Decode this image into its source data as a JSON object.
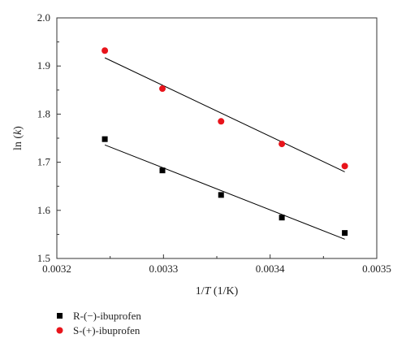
{
  "chart_data": {
    "type": "scatter",
    "xlabel_pre": "1/",
    "xlabel_italic": "T",
    "xlabel_post": " (1/K)",
    "ylabel_pre": "ln (",
    "ylabel_italic": "k",
    "ylabel_post": ")",
    "xlim": [
      0.0032,
      0.0035
    ],
    "ylim": [
      1.5,
      2.0
    ],
    "xticks": [
      0.0032,
      0.0033,
      0.0034,
      0.0035
    ],
    "xtick_labels": [
      "0.0032",
      "0.0033",
      "0.0034",
      "0.0035"
    ],
    "yticks": [
      1.5,
      1.6,
      1.7,
      1.8,
      1.9,
      2.0
    ],
    "ytick_labels": [
      "1.5",
      "1.6",
      "1.7",
      "1.8",
      "1.9",
      "2.0"
    ],
    "grid": false,
    "legend_position": "bottom-left",
    "series": [
      {
        "name": "R-(−)-ibuprofen",
        "marker": "square",
        "color": "#000000",
        "x": [
          0.003245,
          0.003299,
          0.003354,
          0.003411,
          0.00347
        ],
        "y": [
          1.748,
          1.683,
          1.632,
          1.585,
          1.553
        ],
        "fit": {
          "x": [
            0.003245,
            0.00347
          ],
          "y": [
            1.736,
            1.54
          ]
        }
      },
      {
        "name": "S-(+)-ibuprofen",
        "marker": "circle",
        "color": "#e8141b",
        "x": [
          0.003245,
          0.003299,
          0.003354,
          0.003411,
          0.00347
        ],
        "y": [
          1.932,
          1.853,
          1.785,
          1.738,
          1.692
        ],
        "fit": {
          "x": [
            0.003245,
            0.00347
          ],
          "y": [
            1.917,
            1.68
          ]
        }
      }
    ]
  }
}
